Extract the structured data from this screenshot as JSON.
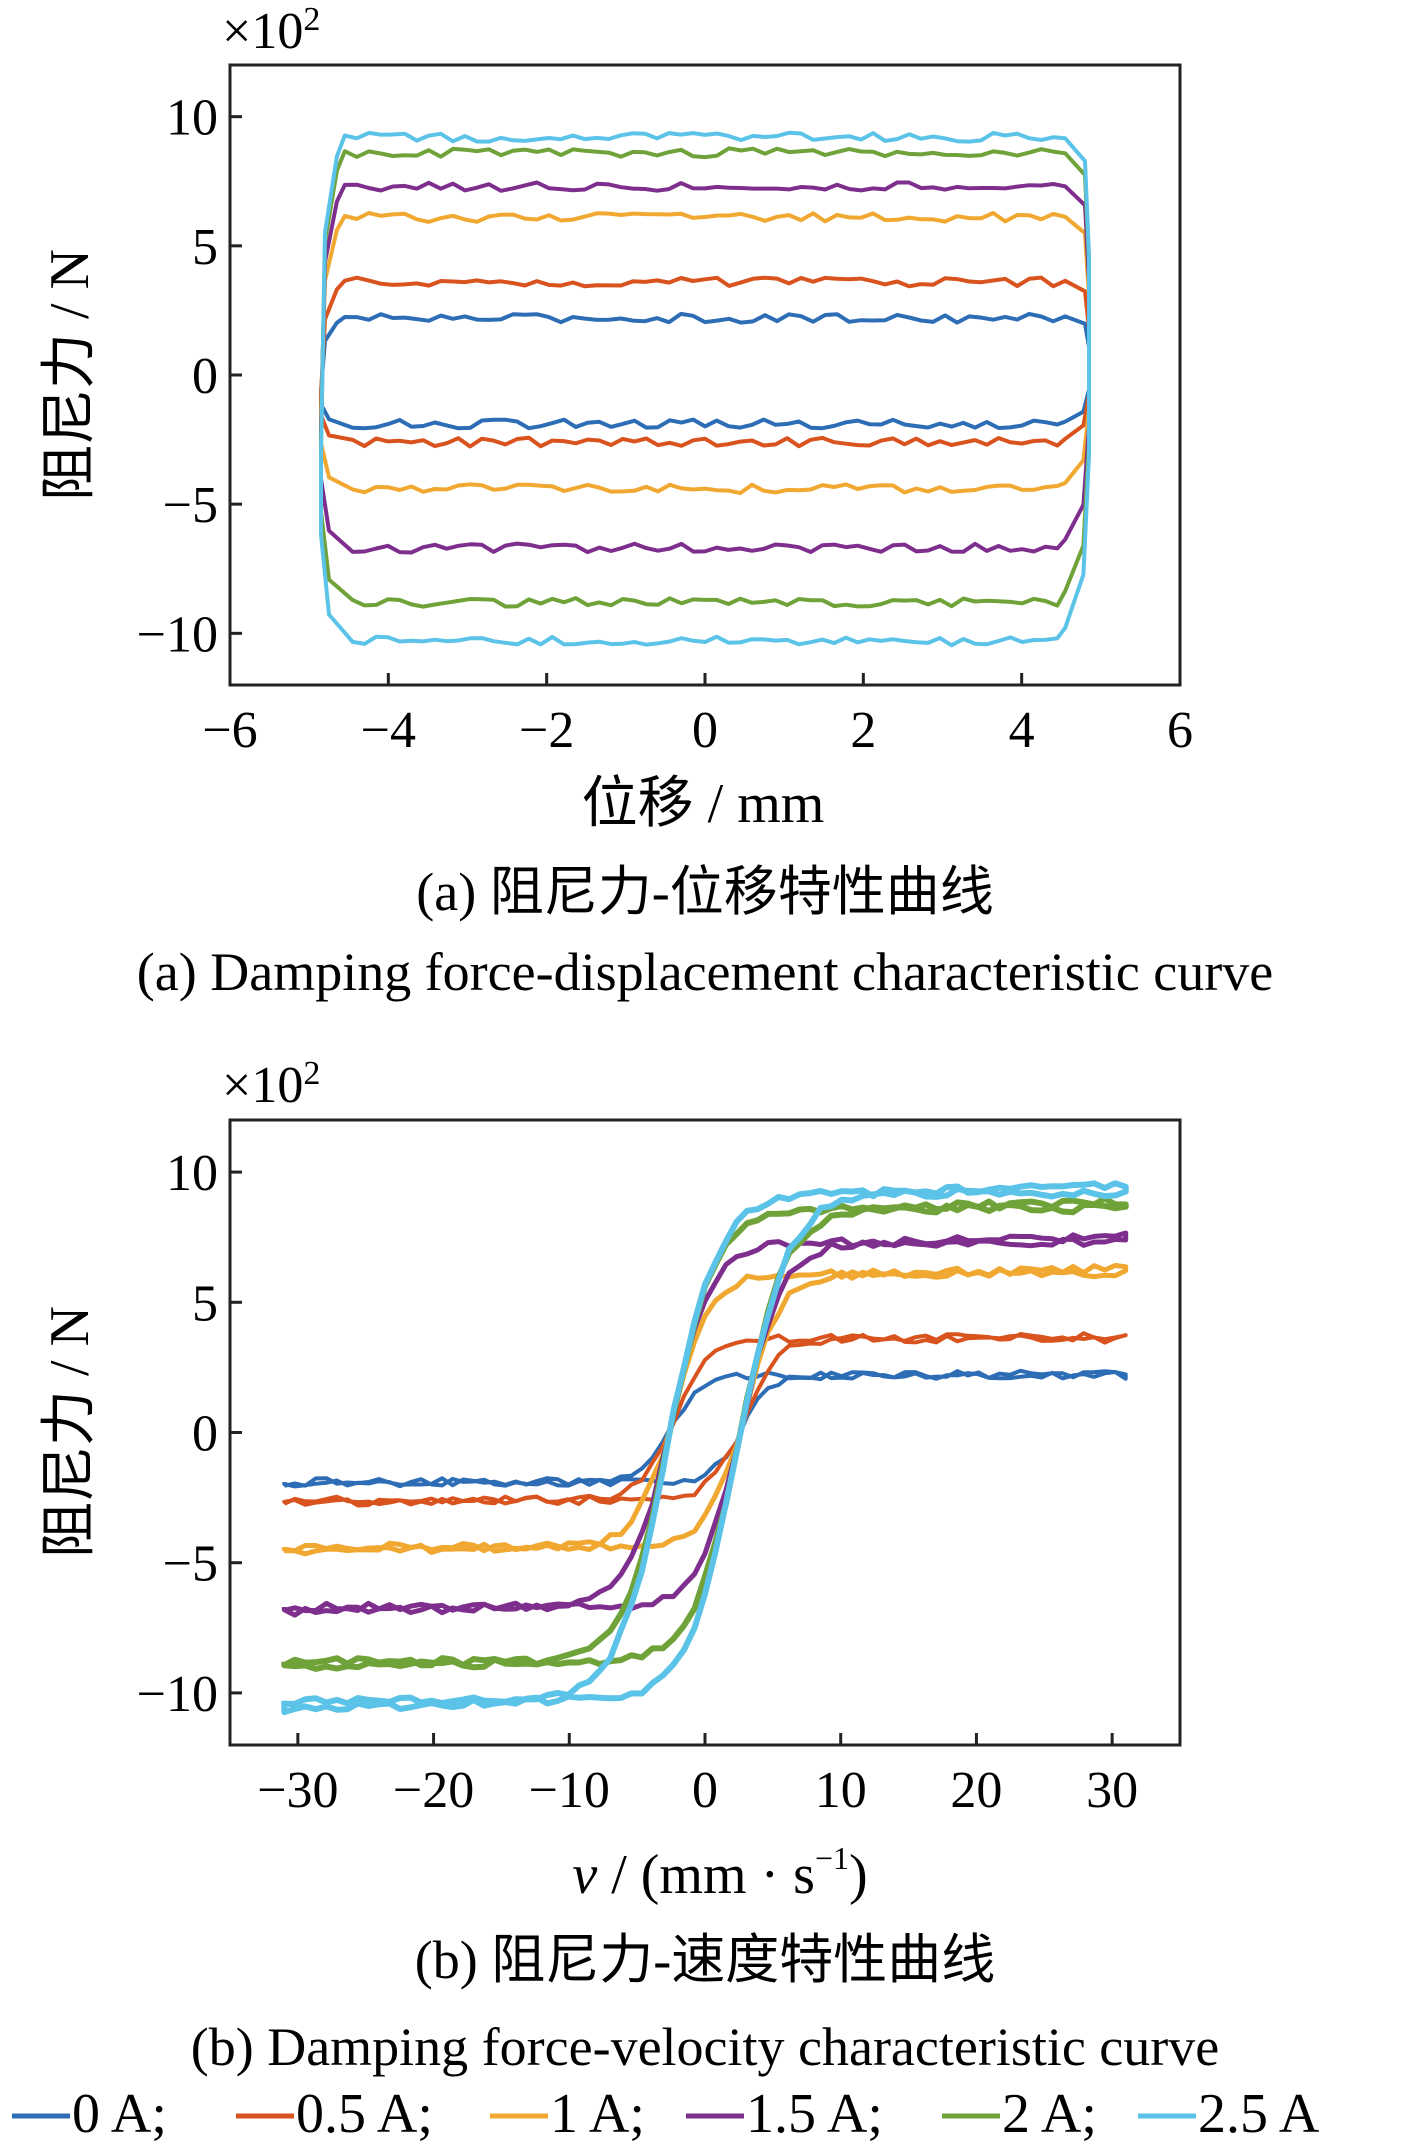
{
  "chart_data": [
    {
      "type": "line",
      "panel": "a",
      "multiplier_label": "×10",
      "multiplier_exp": "2",
      "xlabel": "位移 / mm",
      "ylabel": "阻尼力 / N",
      "xlim": [
        -6,
        6
      ],
      "ylim": [
        -12,
        12
      ],
      "xticks": [
        -6,
        -4,
        -2,
        0,
        2,
        4,
        6
      ],
      "xtick_labels": [
        "−6",
        "−4",
        "−2",
        "0",
        "2",
        "4",
        "6"
      ],
      "yticks": [
        -10,
        -5,
        0,
        5,
        10
      ],
      "ytick_labels": [
        "−10",
        "−5",
        "0",
        "5",
        "10"
      ],
      "caption_cn": "(a)  阻尼力-位移特性曲线",
      "caption_en": "(a)  Damping force-displacement characteristic curve",
      "series": [
        {
          "name": "0 A",
          "color": "#2d6db5",
          "upper": 2.2,
          "lower": -1.9
        },
        {
          "name": "0.5 A",
          "color": "#d9531e",
          "upper": 3.6,
          "lower": -2.6
        },
        {
          "name": "1 A",
          "color": "#f0a830",
          "upper": 6.1,
          "lower": -4.4
        },
        {
          "name": "1.5 A",
          "color": "#7e2f8e",
          "upper": 7.3,
          "lower": -6.7
        },
        {
          "name": "2 A",
          "color": "#6fa33a",
          "upper": 8.6,
          "lower": -8.8
        },
        {
          "name": "2.5 A",
          "color": "#5cc3e8",
          "upper": 9.2,
          "lower": -10.3
        }
      ]
    },
    {
      "type": "line",
      "panel": "b",
      "multiplier_label": "×10",
      "multiplier_exp": "2",
      "xlabel_var": "v",
      "xlabel_unit": " / (mm · s",
      "xlabel_exp": "−1",
      "xlabel_close": ")",
      "ylabel": "阻尼力 / N",
      "xlim": [
        -35,
        35
      ],
      "ylim": [
        -12,
        12
      ],
      "xticks": [
        -30,
        -20,
        -10,
        0,
        10,
        20,
        30
      ],
      "xtick_labels": [
        "−30",
        "−20",
        "−10",
        "0",
        "10",
        "20",
        "30"
      ],
      "yticks": [
        -10,
        -5,
        0,
        5,
        10
      ],
      "ytick_labels": [
        "−10",
        "−5",
        "0",
        "5",
        "10"
      ],
      "caption_cn": "(b)  阻尼力-速度特性曲线",
      "caption_en": "(b)  Damping force-velocity characteristic curve",
      "series": [
        {
          "name": "0 A",
          "color": "#2d6db5",
          "upper": 2.2,
          "lower": -1.9,
          "width": 4
        },
        {
          "name": "0.5 A",
          "color": "#d9531e",
          "upper": 3.6,
          "lower": -2.6,
          "width": 4
        },
        {
          "name": "1 A",
          "color": "#f0a830",
          "upper": 6.1,
          "lower": -4.4,
          "width": 5
        },
        {
          "name": "1.5 A",
          "color": "#7e2f8e",
          "upper": 7.3,
          "lower": -6.7,
          "width": 5
        },
        {
          "name": "2 A",
          "color": "#6fa33a",
          "upper": 8.6,
          "lower": -8.8,
          "width": 6
        },
        {
          "name": "2.5 A",
          "color": "#5cc3e8",
          "upper": 9.2,
          "lower": -10.3,
          "width": 6
        }
      ]
    }
  ],
  "legend": [
    {
      "label": "0 A;",
      "color": "#2d6db5"
    },
    {
      "label": "0.5 A;",
      "color": "#d9531e"
    },
    {
      "label": "1 A;",
      "color": "#f0a830"
    },
    {
      "label": "1.5 A;",
      "color": "#7e2f8e"
    },
    {
      "label": "2 A;",
      "color": "#6fa33a"
    },
    {
      "label": "2.5 A",
      "color": "#5cc3e8"
    }
  ]
}
